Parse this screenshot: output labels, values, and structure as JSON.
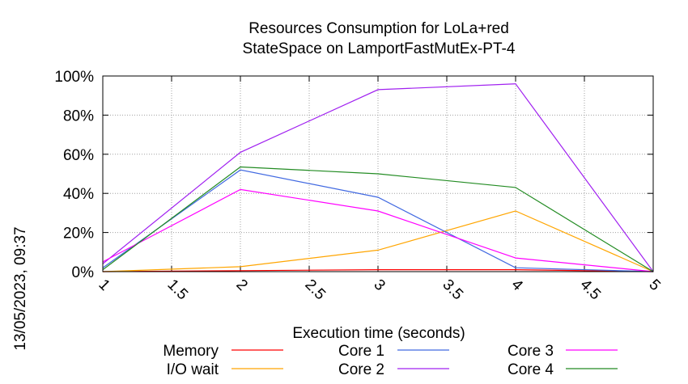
{
  "chart_data": {
    "type": "line",
    "title": [
      "Resources Consumption for LoLa+red",
      "StateSpace on LamportFastMutEx-PT-4"
    ],
    "xlabel": "Execution time (seconds)",
    "ylabel": "",
    "side_label": "13/05/2023, 09:37",
    "xlim": [
      1,
      5
    ],
    "ylim": [
      0,
      100
    ],
    "x_ticks": [
      "1",
      "1.5",
      "2",
      "2.5",
      "3",
      "3.5",
      "4",
      "4.5",
      "5"
    ],
    "y_ticks": [
      "0%",
      "20%",
      "40%",
      "60%",
      "80%",
      "100%"
    ],
    "grid": true,
    "legend_position": "bottom",
    "series": [
      {
        "name": "Memory",
        "color": "#ff0000",
        "x": [
          1,
          2,
          3,
          4,
          5
        ],
        "values": [
          0,
          0.5,
          1,
          1,
          0
        ]
      },
      {
        "name": "I/O wait",
        "color": "#ffa500",
        "x": [
          1,
          2,
          3,
          4,
          5
        ],
        "values": [
          0,
          2.5,
          11,
          31,
          0
        ]
      },
      {
        "name": "Core 1",
        "color": "#4169e1",
        "x": [
          1,
          2,
          3,
          4,
          5
        ],
        "values": [
          2,
          52,
          38,
          2,
          0
        ]
      },
      {
        "name": "Core 2",
        "color": "#a020f0",
        "x": [
          1,
          2,
          3,
          4,
          5
        ],
        "values": [
          4,
          61,
          93,
          96,
          0
        ]
      },
      {
        "name": "Core 3",
        "color": "#ff00ff",
        "x": [
          1,
          2,
          3,
          4,
          5
        ],
        "values": [
          5,
          42,
          31,
          7,
          0
        ]
      },
      {
        "name": "Core 4",
        "color": "#228b22",
        "x": [
          1,
          2,
          3,
          4,
          5
        ],
        "values": [
          1,
          53.5,
          50,
          43,
          0
        ]
      }
    ]
  }
}
